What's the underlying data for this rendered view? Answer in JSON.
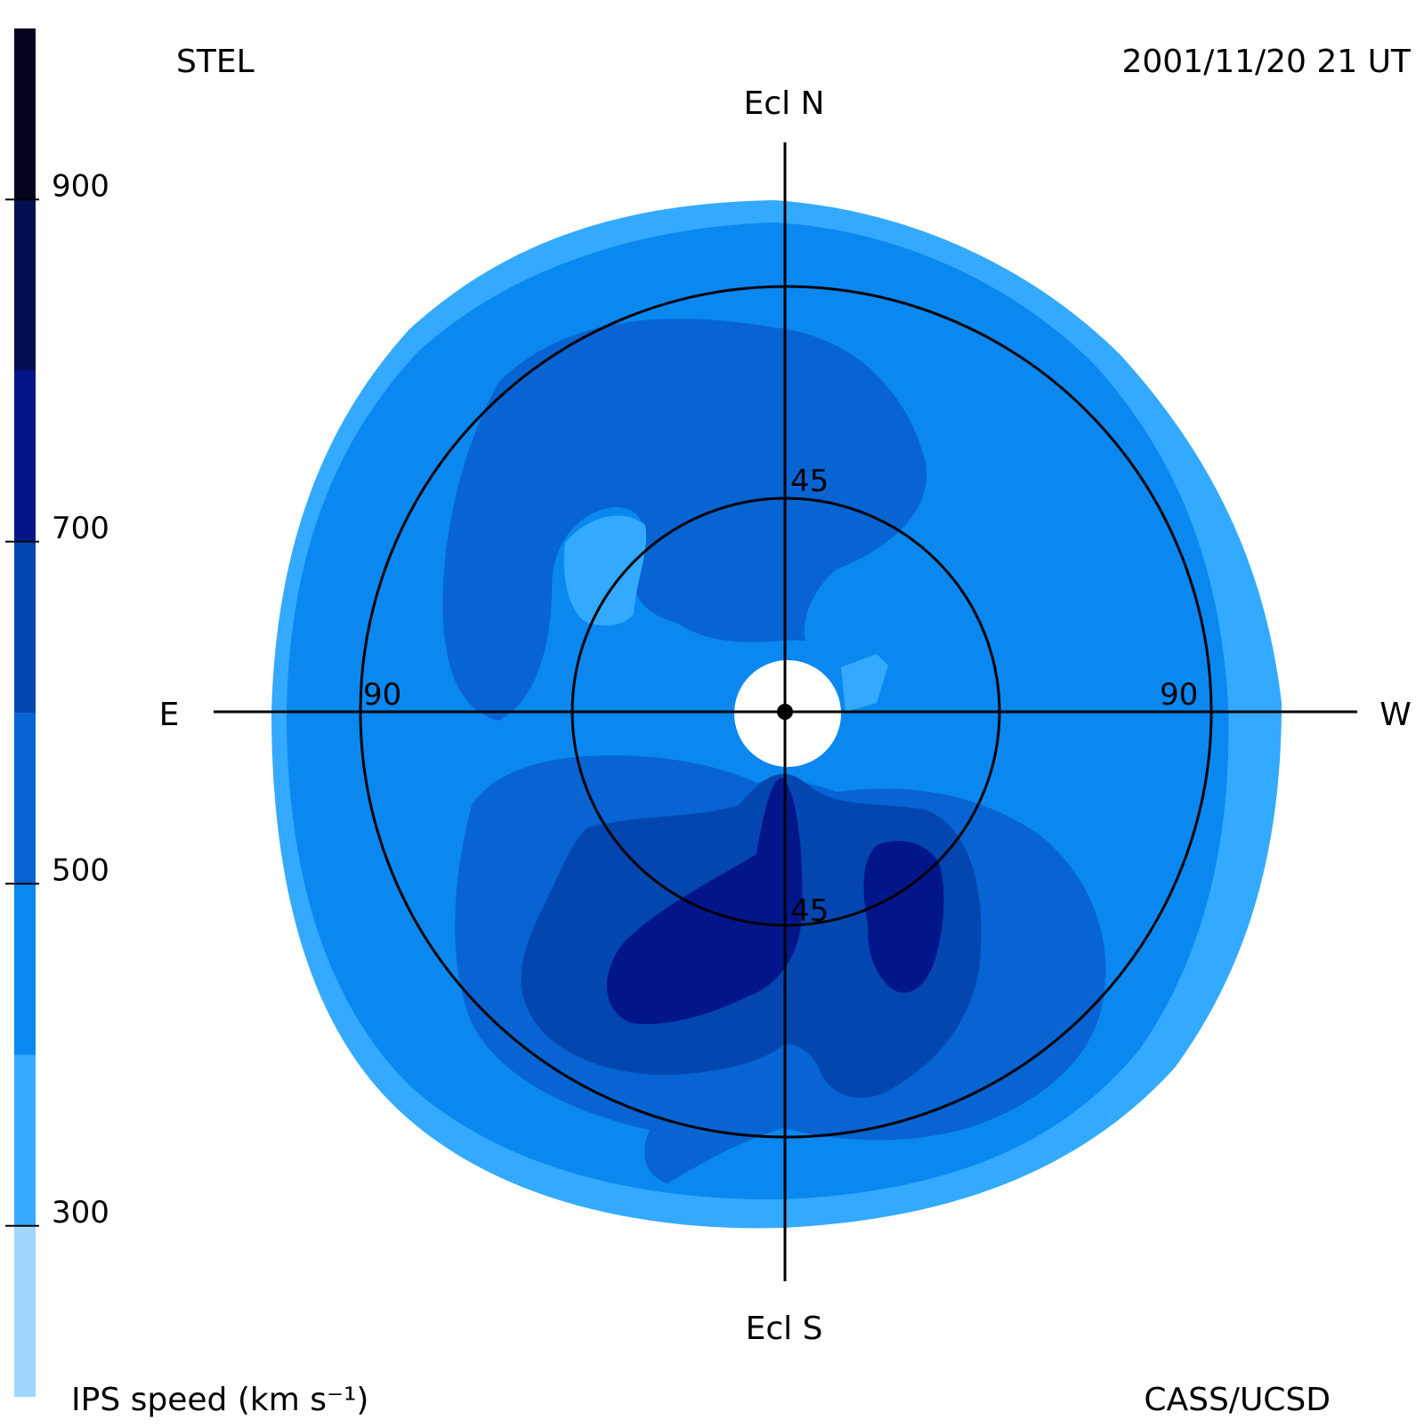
{
  "header": {
    "source_label": "STEL",
    "datetime": "2001/11/20 21 UT",
    "credit": "CASS/UCSD"
  },
  "compass": {
    "north": "Ecl N",
    "south": "Ecl S",
    "east": "E",
    "west": "W"
  },
  "ring_labels": {
    "inner_north": "45",
    "inner_south": "45",
    "outer_east": "90",
    "outer_west": "90"
  },
  "colorbar": {
    "title": "IPS speed (km s⁻¹)",
    "ticks": [
      "900",
      "700",
      "500",
      "300"
    ],
    "bands": [
      {
        "from": 200,
        "to": 300,
        "color": "#9fd6ff"
      },
      {
        "from": 300,
        "to": 400,
        "color": "#33aaff"
      },
      {
        "from": 400,
        "to": 500,
        "color": "#0a88f0"
      },
      {
        "from": 500,
        "to": 600,
        "color": "#0764d2"
      },
      {
        "from": 600,
        "to": 700,
        "color": "#0446b0"
      },
      {
        "from": 700,
        "to": 800,
        "color": "#02168a"
      },
      {
        "from": 800,
        "to": 900,
        "color": "#030d52"
      },
      {
        "from": 900,
        "to": 1000,
        "color": "#02031f"
      }
    ]
  },
  "map_colors": {
    "outer_rim": "#33aaff",
    "background_speed": "#0a88f0",
    "medium_speed": "#0764d2",
    "high_speed": "#0446b0",
    "very_high_speed": "#02168a",
    "sun_occulter": "#ffffff",
    "axes": "#000000"
  }
}
